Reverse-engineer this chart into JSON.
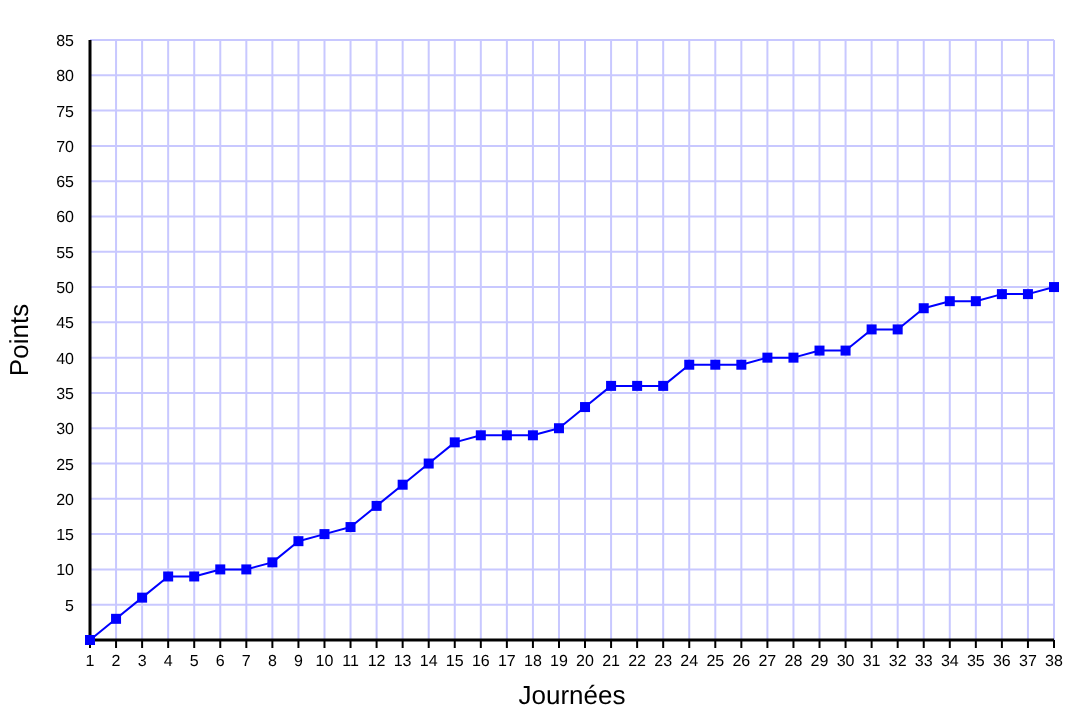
{
  "chart_data": {
    "type": "line",
    "xlabel": "Journées",
    "ylabel": "Points",
    "x": [
      1,
      2,
      3,
      4,
      5,
      6,
      7,
      8,
      9,
      10,
      11,
      12,
      13,
      14,
      15,
      16,
      17,
      18,
      19,
      20,
      21,
      22,
      23,
      24,
      25,
      26,
      27,
      28,
      29,
      30,
      31,
      32,
      33,
      34,
      35,
      36,
      37,
      38
    ],
    "series": [
      {
        "color": "#0000ff",
        "values": [
          0,
          3,
          6,
          9,
          9,
          10,
          10,
          11,
          14,
          15,
          16,
          19,
          22,
          25,
          28,
          29,
          29,
          29,
          30,
          33,
          36,
          36,
          36,
          39,
          39,
          39,
          40,
          40,
          41,
          41,
          44,
          44,
          47,
          48,
          48,
          49,
          49,
          50
        ]
      }
    ],
    "xlim": [
      1,
      38
    ],
    "xticks": [
      1,
      2,
      3,
      4,
      5,
      6,
      7,
      8,
      9,
      10,
      11,
      12,
      13,
      14,
      15,
      16,
      17,
      18,
      19,
      20,
      21,
      22,
      23,
      24,
      25,
      26,
      27,
      28,
      29,
      30,
      31,
      32,
      33,
      34,
      35,
      36,
      37,
      38
    ],
    "ylim": [
      0,
      85
    ],
    "yticks": [
      5,
      10,
      15,
      20,
      25,
      30,
      35,
      40,
      45,
      50,
      55,
      60,
      65,
      70,
      75,
      80,
      85
    ],
    "grid": true,
    "marker": "square",
    "line_style": "solid"
  }
}
